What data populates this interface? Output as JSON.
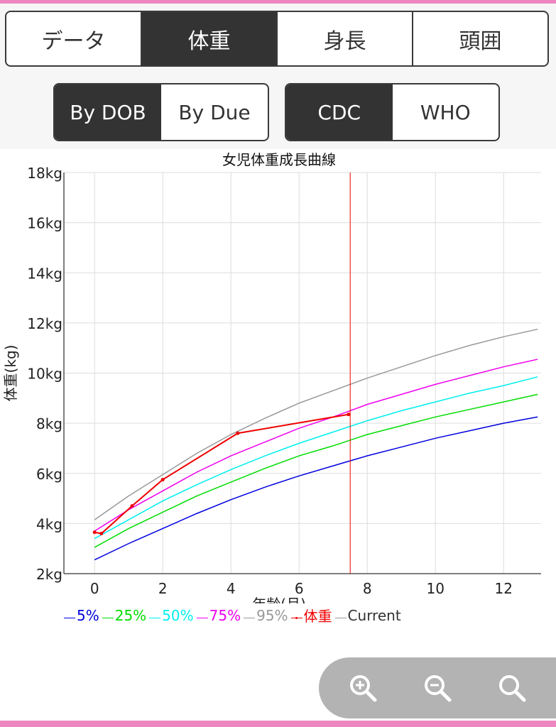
{
  "tabs": [
    {
      "label": "データ",
      "active": false
    },
    {
      "label": "体重",
      "active": true
    },
    {
      "label": "身長",
      "active": false
    },
    {
      "label": "頭囲",
      "active": false
    }
  ],
  "basis_toggle": [
    {
      "label": "By DOB",
      "active": true
    },
    {
      "label": "By Due",
      "active": false
    }
  ],
  "standard_toggle": [
    {
      "label": "CDC",
      "active": true
    },
    {
      "label": "WHO",
      "active": false
    }
  ],
  "zoom": {
    "icons": [
      "zoom-in-icon",
      "zoom-out-icon",
      "zoom-reset-icon"
    ]
  },
  "colors": {
    "p5": "#0000dd",
    "p25": "#00dd00",
    "p50": "#00eeee",
    "p75": "#ee00ee",
    "p95": "#999999",
    "weight": "#ee0000",
    "current": "#ee0000",
    "accent_pink": "#ee86c0",
    "active_tab": "#333333"
  },
  "chart_data": {
    "type": "line",
    "title": "女児体重成長曲線",
    "xlabel": "年齢(月)",
    "ylabel": "体重(kg)",
    "xlim": [
      -0.9,
      13.1
    ],
    "ylim": [
      2,
      18
    ],
    "x_ticks": [
      0,
      2,
      4,
      6,
      8,
      10,
      12
    ],
    "y_ticks": [
      2,
      4,
      6,
      8,
      10,
      12,
      14,
      16,
      18
    ],
    "y_tick_suffix": "kg",
    "grid": true,
    "current_x": 7.5,
    "percentile_x": [
      0,
      1,
      2,
      3,
      4,
      5,
      6,
      7,
      8,
      9,
      10,
      11,
      12,
      13
    ],
    "series": [
      {
        "name": "5%",
        "color_key": "p5",
        "values": [
          2.55,
          3.2,
          3.8,
          4.4,
          4.95,
          5.45,
          5.9,
          6.3,
          6.7,
          7.05,
          7.4,
          7.7,
          8.0,
          8.25
        ]
      },
      {
        "name": "25%",
        "color_key": "p25",
        "values": [
          3.05,
          3.8,
          4.45,
          5.1,
          5.65,
          6.2,
          6.7,
          7.1,
          7.55,
          7.9,
          8.25,
          8.55,
          8.85,
          9.15
        ]
      },
      {
        "name": "50%",
        "color_key": "p50",
        "values": [
          3.4,
          4.15,
          4.9,
          5.55,
          6.15,
          6.7,
          7.2,
          7.65,
          8.1,
          8.5,
          8.85,
          9.2,
          9.5,
          9.85
        ]
      },
      {
        "name": "75%",
        "color_key": "p75",
        "values": [
          3.7,
          4.55,
          5.3,
          6.05,
          6.7,
          7.25,
          7.8,
          8.25,
          8.75,
          9.15,
          9.55,
          9.9,
          10.25,
          10.55
        ]
      },
      {
        "name": "95%",
        "color_key": "p95",
        "values": [
          4.15,
          5.1,
          5.95,
          6.8,
          7.55,
          8.2,
          8.8,
          9.3,
          9.8,
          10.25,
          10.7,
          11.1,
          11.45,
          11.75
        ]
      }
    ],
    "weight": {
      "name": "体重",
      "color_key": "weight",
      "x": [
        0,
        0.2,
        1.1,
        2.0,
        4.2,
        7.45
      ],
      "y": [
        3.65,
        3.6,
        4.7,
        5.75,
        7.6,
        8.35
      ]
    },
    "legend": [
      "5%",
      "25%",
      "50%",
      "75%",
      "95%",
      "体重",
      "Current"
    ]
  }
}
